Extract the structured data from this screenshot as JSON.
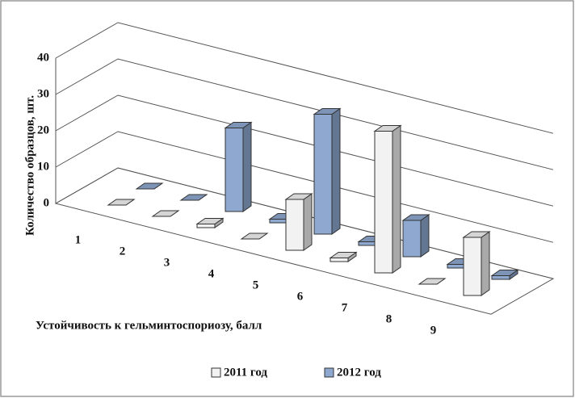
{
  "chart_data": {
    "type": "bar3d",
    "y_label": "Количество образцов, шт.",
    "x_label": "Устойчивость к гельминтоспориозу, балл",
    "categories": [
      "1",
      "2",
      "3",
      "4",
      "5",
      "6",
      "7",
      "8",
      "9"
    ],
    "series": [
      {
        "name": "2011 год",
        "color": "#f2f2f2",
        "values": [
          0,
          0,
          1,
          0,
          14,
          1,
          39,
          0,
          16
        ]
      },
      {
        "name": "2012 год",
        "color": "#8ea8d0",
        "values": [
          0,
          0,
          23,
          1,
          33,
          1,
          10,
          1,
          1
        ]
      }
    ],
    "ylim": [
      0,
      40
    ],
    "yticks": [
      0,
      10,
      20,
      30,
      40
    ],
    "grid": true
  }
}
